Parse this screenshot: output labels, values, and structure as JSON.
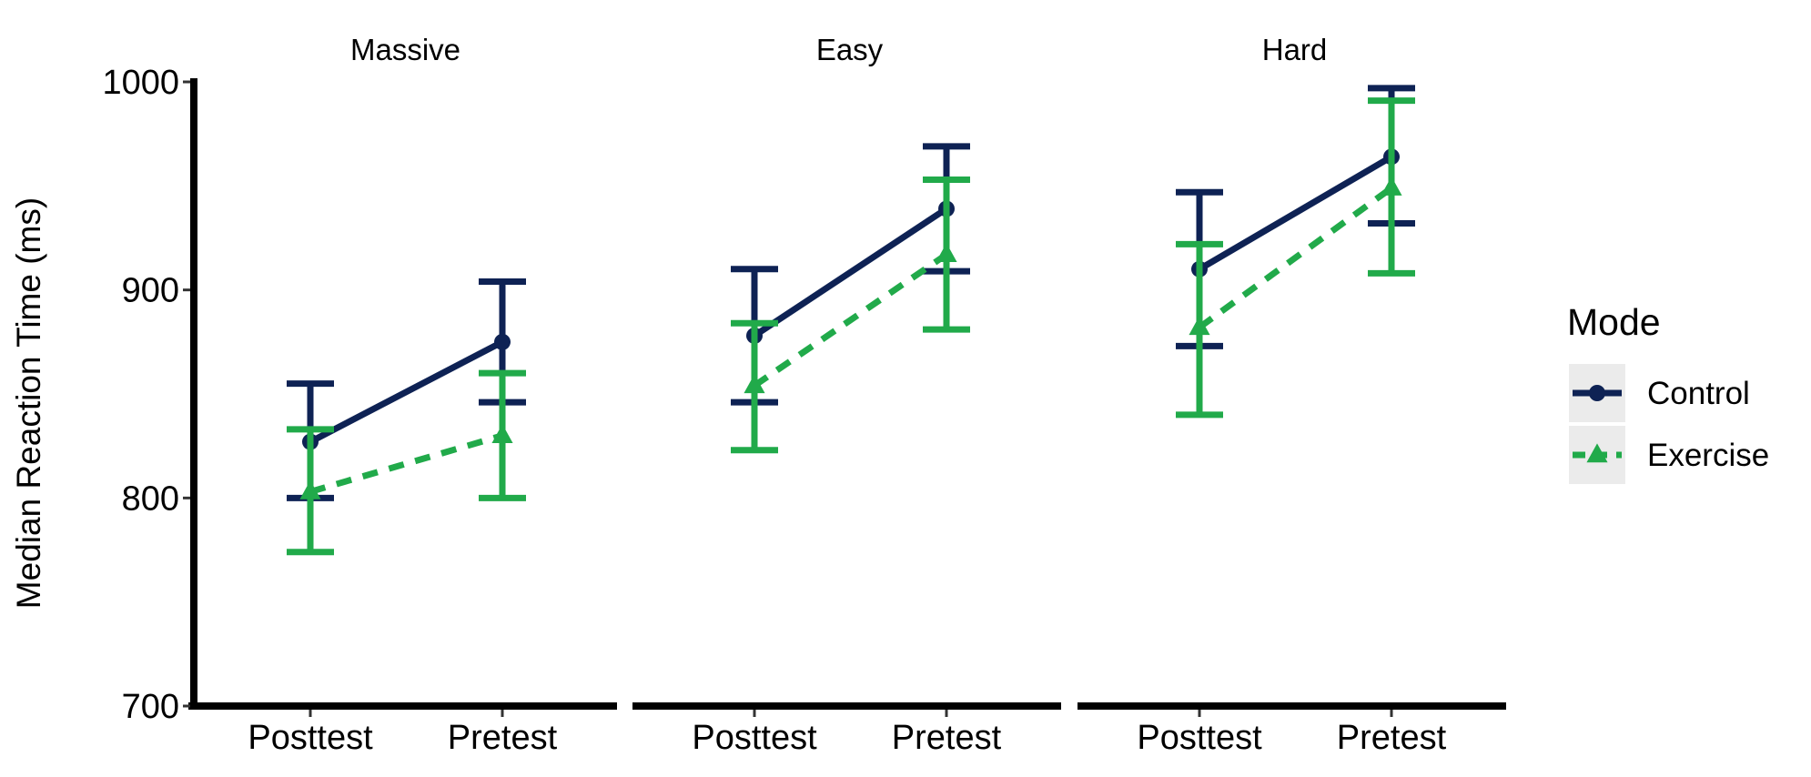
{
  "colors": {
    "control": "#0e2254",
    "exercise": "#21aa4a",
    "axis": "#000000",
    "legend_key_bg": "#ebebeb"
  },
  "chart_data": {
    "type": "line",
    "ylabel": "Median Reaction Time (ms)",
    "xlabel": "",
    "ylim": [
      700,
      1000
    ],
    "yticks": [
      700,
      800,
      900,
      1000
    ],
    "categories": [
      "Posttest",
      "Pretest"
    ],
    "grid": false,
    "legend": {
      "title": "Mode",
      "position": "right"
    },
    "facets": [
      {
        "title": "Massive",
        "series": [
          {
            "name": "Control",
            "values": [
              827,
              875
            ],
            "lower": [
              800,
              846
            ],
            "upper": [
              855,
              904
            ]
          },
          {
            "name": "Exercise",
            "values": [
              803,
              830
            ],
            "lower": [
              774,
              800
            ],
            "upper": [
              833,
              860
            ]
          }
        ]
      },
      {
        "title": "Easy",
        "series": [
          {
            "name": "Control",
            "values": [
              878,
              939
            ],
            "lower": [
              846,
              909
            ],
            "upper": [
              910,
              969
            ]
          },
          {
            "name": "Exercise",
            "values": [
              854,
              917
            ],
            "lower": [
              823,
              881
            ],
            "upper": [
              884,
              953
            ]
          }
        ]
      },
      {
        "title": "Hard",
        "series": [
          {
            "name": "Control",
            "values": [
              910,
              964
            ],
            "lower": [
              873,
              932
            ],
            "upper": [
              947,
              997
            ]
          },
          {
            "name": "Exercise",
            "values": [
              882,
              949
            ],
            "lower": [
              840,
              908
            ],
            "upper": [
              922,
              991
            ]
          }
        ]
      }
    ]
  }
}
